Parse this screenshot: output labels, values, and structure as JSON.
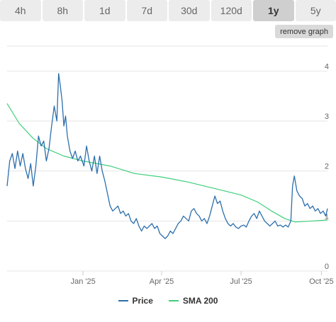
{
  "tabs": [
    {
      "label": "4h",
      "active": false
    },
    {
      "label": "8h",
      "active": false
    },
    {
      "label": "1d",
      "active": false
    },
    {
      "label": "7d",
      "active": false
    },
    {
      "label": "30d",
      "active": false
    },
    {
      "label": "120d",
      "active": false
    },
    {
      "label": "1y",
      "active": true
    },
    {
      "label": "5y",
      "active": false
    }
  ],
  "remove_graph_label": "remove graph",
  "colors": {
    "price": "#2c6fad",
    "sma": "#3ecf7a",
    "grid": "#e6e6e6"
  },
  "chart_data": {
    "type": "line",
    "ylim": [
      0,
      4.5
    ],
    "y_ticks": [
      0,
      1,
      2,
      3,
      4
    ],
    "x_ticks": [
      {
        "label": "Jan '25",
        "date": "2025-01-01"
      },
      {
        "label": "Apr '25",
        "date": "2025-04-01"
      },
      {
        "label": "Jul '25",
        "date": "2025-07-01"
      },
      {
        "label": "Oct '25",
        "date": "2025-10-01"
      }
    ],
    "x_range": [
      "2024-10-06",
      "2025-10-08"
    ],
    "series": [
      {
        "name": "Price",
        "points": [
          [
            "2024-10-06",
            1.7
          ],
          [
            "2024-10-09",
            2.2
          ],
          [
            "2024-10-12",
            2.35
          ],
          [
            "2024-10-15",
            2.05
          ],
          [
            "2024-10-18",
            2.4
          ],
          [
            "2024-10-21",
            2.1
          ],
          [
            "2024-10-24",
            2.35
          ],
          [
            "2024-10-27",
            2.05
          ],
          [
            "2024-10-30",
            1.85
          ],
          [
            "2024-11-02",
            2.15
          ],
          [
            "2024-11-05",
            1.7
          ],
          [
            "2024-11-08",
            2.1
          ],
          [
            "2024-11-11",
            2.7
          ],
          [
            "2024-11-14",
            2.5
          ],
          [
            "2024-11-17",
            2.6
          ],
          [
            "2024-11-20",
            2.2
          ],
          [
            "2024-11-23",
            2.45
          ],
          [
            "2024-11-26",
            2.9
          ],
          [
            "2024-11-29",
            3.3
          ],
          [
            "2024-12-02",
            3.0
          ],
          [
            "2024-12-04",
            3.95
          ],
          [
            "2024-12-06",
            3.7
          ],
          [
            "2024-12-08",
            3.4
          ],
          [
            "2024-12-10",
            2.9
          ],
          [
            "2024-12-12",
            3.1
          ],
          [
            "2024-12-14",
            2.7
          ],
          [
            "2024-12-17",
            2.4
          ],
          [
            "2024-12-20",
            2.25
          ],
          [
            "2024-12-23",
            2.4
          ],
          [
            "2024-12-26",
            2.2
          ],
          [
            "2024-12-29",
            2.3
          ],
          [
            "2025-01-02",
            2.1
          ],
          [
            "2025-01-05",
            2.5
          ],
          [
            "2025-01-08",
            2.2
          ],
          [
            "2025-01-11",
            2.0
          ],
          [
            "2025-01-14",
            2.3
          ],
          [
            "2025-01-17",
            1.95
          ],
          [
            "2025-01-20",
            2.3
          ],
          [
            "2025-01-23",
            2.0
          ],
          [
            "2025-01-26",
            1.8
          ],
          [
            "2025-01-29",
            1.55
          ],
          [
            "2025-02-01",
            1.3
          ],
          [
            "2025-02-04",
            1.2
          ],
          [
            "2025-02-07",
            1.25
          ],
          [
            "2025-02-10",
            1.3
          ],
          [
            "2025-02-13",
            1.15
          ],
          [
            "2025-02-16",
            1.2
          ],
          [
            "2025-02-19",
            1.1
          ],
          [
            "2025-02-22",
            1.15
          ],
          [
            "2025-02-25",
            1.0
          ],
          [
            "2025-02-28",
            0.95
          ],
          [
            "2025-03-03",
            1.05
          ],
          [
            "2025-03-06",
            0.9
          ],
          [
            "2025-03-09",
            0.8
          ],
          [
            "2025-03-12",
            0.9
          ],
          [
            "2025-03-15",
            0.85
          ],
          [
            "2025-03-18",
            0.9
          ],
          [
            "2025-03-21",
            0.95
          ],
          [
            "2025-03-24",
            0.85
          ],
          [
            "2025-03-27",
            0.9
          ],
          [
            "2025-03-30",
            0.75
          ],
          [
            "2025-04-02",
            0.7
          ],
          [
            "2025-04-05",
            0.65
          ],
          [
            "2025-04-08",
            0.7
          ],
          [
            "2025-04-11",
            0.8
          ],
          [
            "2025-04-14",
            0.75
          ],
          [
            "2025-04-17",
            0.85
          ],
          [
            "2025-04-20",
            0.95
          ],
          [
            "2025-04-23",
            1.0
          ],
          [
            "2025-04-26",
            1.1
          ],
          [
            "2025-04-29",
            1.05
          ],
          [
            "2025-05-02",
            1.0
          ],
          [
            "2025-05-05",
            1.2
          ],
          [
            "2025-05-08",
            1.25
          ],
          [
            "2025-05-11",
            1.15
          ],
          [
            "2025-05-14",
            1.1
          ],
          [
            "2025-05-17",
            1.0
          ],
          [
            "2025-05-20",
            1.05
          ],
          [
            "2025-05-23",
            0.95
          ],
          [
            "2025-05-26",
            1.1
          ],
          [
            "2025-05-29",
            1.3
          ],
          [
            "2025-06-01",
            1.5
          ],
          [
            "2025-06-04",
            1.35
          ],
          [
            "2025-06-07",
            1.4
          ],
          [
            "2025-06-10",
            1.2
          ],
          [
            "2025-06-13",
            1.05
          ],
          [
            "2025-06-16",
            0.95
          ],
          [
            "2025-06-19",
            0.9
          ],
          [
            "2025-06-22",
            0.95
          ],
          [
            "2025-06-25",
            0.88
          ],
          [
            "2025-06-28",
            0.85
          ],
          [
            "2025-07-01",
            0.9
          ],
          [
            "2025-07-04",
            0.92
          ],
          [
            "2025-07-07",
            0.88
          ],
          [
            "2025-07-10",
            1.0
          ],
          [
            "2025-07-13",
            1.1
          ],
          [
            "2025-07-16",
            1.15
          ],
          [
            "2025-07-19",
            1.05
          ],
          [
            "2025-07-22",
            1.2
          ],
          [
            "2025-07-25",
            1.1
          ],
          [
            "2025-07-28",
            1.0
          ],
          [
            "2025-07-31",
            0.95
          ],
          [
            "2025-08-03",
            0.9
          ],
          [
            "2025-08-06",
            0.95
          ],
          [
            "2025-08-09",
            1.0
          ],
          [
            "2025-08-12",
            0.9
          ],
          [
            "2025-08-15",
            0.92
          ],
          [
            "2025-08-18",
            0.88
          ],
          [
            "2025-08-21",
            0.92
          ],
          [
            "2025-08-24",
            0.88
          ],
          [
            "2025-08-27",
            1.0
          ],
          [
            "2025-08-29",
            1.7
          ],
          [
            "2025-08-31",
            1.9
          ],
          [
            "2025-09-03",
            1.6
          ],
          [
            "2025-09-06",
            1.5
          ],
          [
            "2025-09-09",
            1.45
          ],
          [
            "2025-09-12",
            1.3
          ],
          [
            "2025-09-15",
            1.35
          ],
          [
            "2025-09-18",
            1.25
          ],
          [
            "2025-09-21",
            1.3
          ],
          [
            "2025-09-24",
            1.2
          ],
          [
            "2025-09-27",
            1.25
          ],
          [
            "2025-09-30",
            1.15
          ],
          [
            "2025-10-03",
            1.2
          ],
          [
            "2025-10-06",
            1.1
          ],
          [
            "2025-10-08",
            1.25
          ]
        ]
      },
      {
        "name": "SMA 200",
        "points": [
          [
            "2024-10-06",
            3.35
          ],
          [
            "2024-10-20",
            2.95
          ],
          [
            "2024-11-05",
            2.65
          ],
          [
            "2024-11-20",
            2.45
          ],
          [
            "2024-12-10",
            2.3
          ],
          [
            "2025-01-01",
            2.2
          ],
          [
            "2025-02-01",
            2.1
          ],
          [
            "2025-03-01",
            1.95
          ],
          [
            "2025-04-01",
            1.88
          ],
          [
            "2025-05-01",
            1.78
          ],
          [
            "2025-06-01",
            1.65
          ],
          [
            "2025-07-01",
            1.52
          ],
          [
            "2025-07-20",
            1.38
          ],
          [
            "2025-08-05",
            1.2
          ],
          [
            "2025-08-20",
            1.05
          ],
          [
            "2025-09-01",
            0.98
          ],
          [
            "2025-09-20",
            1.0
          ],
          [
            "2025-10-08",
            1.02
          ]
        ]
      }
    ]
  }
}
